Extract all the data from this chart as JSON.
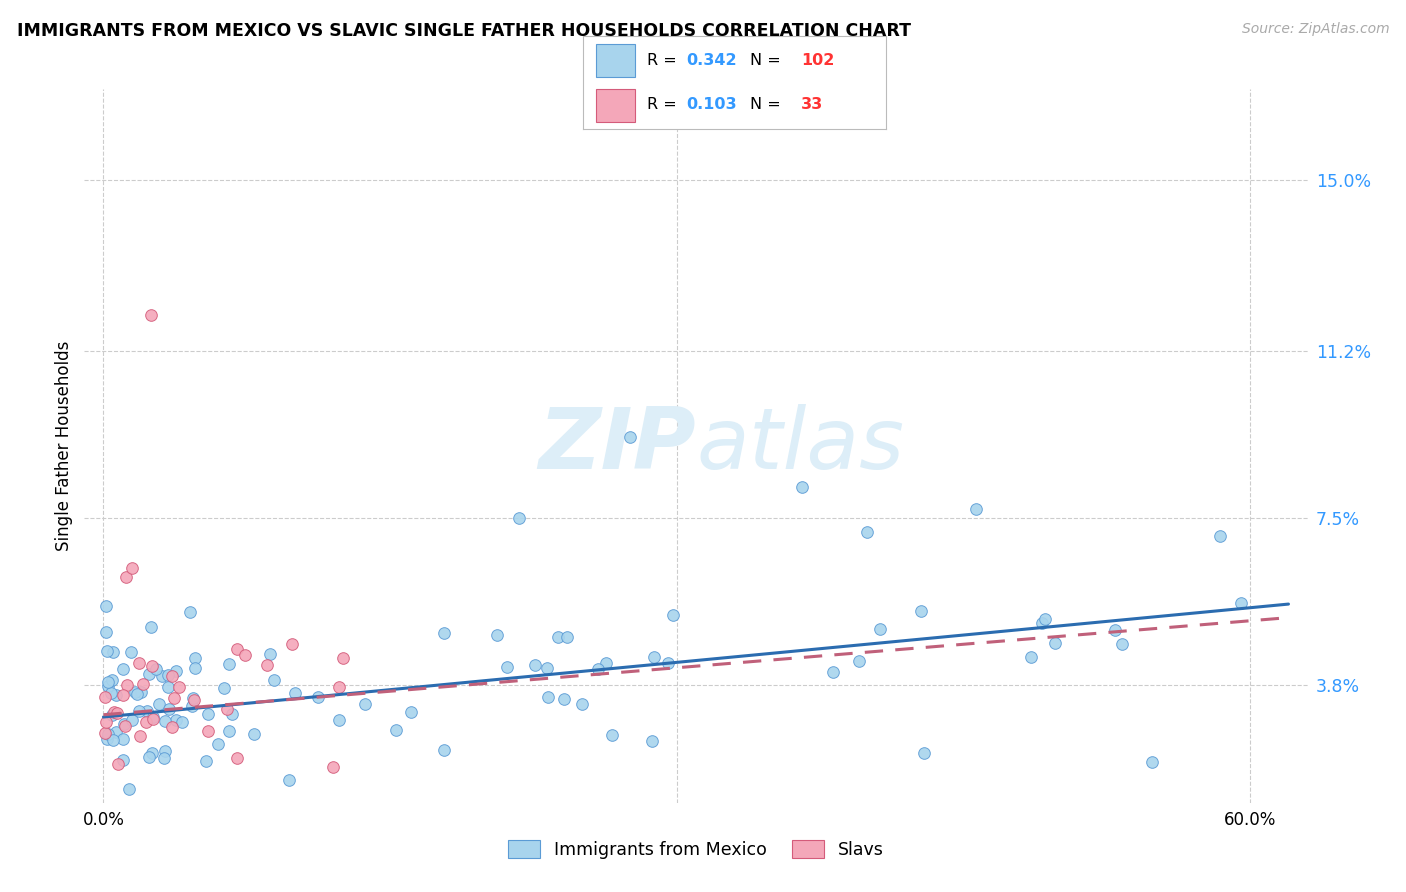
{
  "title": "IMMIGRANTS FROM MEXICO VS SLAVIC SINGLE FATHER HOUSEHOLDS CORRELATION CHART",
  "source": "Source: ZipAtlas.com",
  "ylabel": "Single Father Households",
  "ytick_values": [
    3.8,
    7.5,
    11.2,
    15.0
  ],
  "ytick_labels": [
    "3.8%",
    "7.5%",
    "11.2%",
    "15.0%"
  ],
  "xtick_values": [
    0.0,
    30.0,
    60.0
  ],
  "xtick_labels": [
    "0.0%",
    "",
    "60.0%"
  ],
  "xlim": [
    -1.0,
    63.0
  ],
  "ylim": [
    1.2,
    17.0
  ],
  "legend_blue_R": "0.342",
  "legend_blue_N": "102",
  "legend_pink_R": "0.103",
  "legend_pink_N": "33",
  "blue_color": "#a8d4ed",
  "blue_edge_color": "#5b9bd5",
  "pink_color": "#f4a7b9",
  "pink_edge_color": "#d45b7a",
  "trendline_blue_color": "#2b6cb0",
  "trendline_pink_color": "#c0607a",
  "watermark_color": "#ddeef8",
  "legend_label_blue": "Immigrants from Mexico",
  "legend_label_pink": "Slavs",
  "blue_trend_x0": 0.0,
  "blue_trend_y0": 3.1,
  "blue_trend_x1": 62.0,
  "blue_trend_y1": 5.6,
  "pink_trend_x0": 0.0,
  "pink_trend_y0": 3.15,
  "pink_trend_x1": 62.0,
  "pink_trend_y1": 5.3,
  "R_color": "#3399ff",
  "N_color": "#ff3333"
}
